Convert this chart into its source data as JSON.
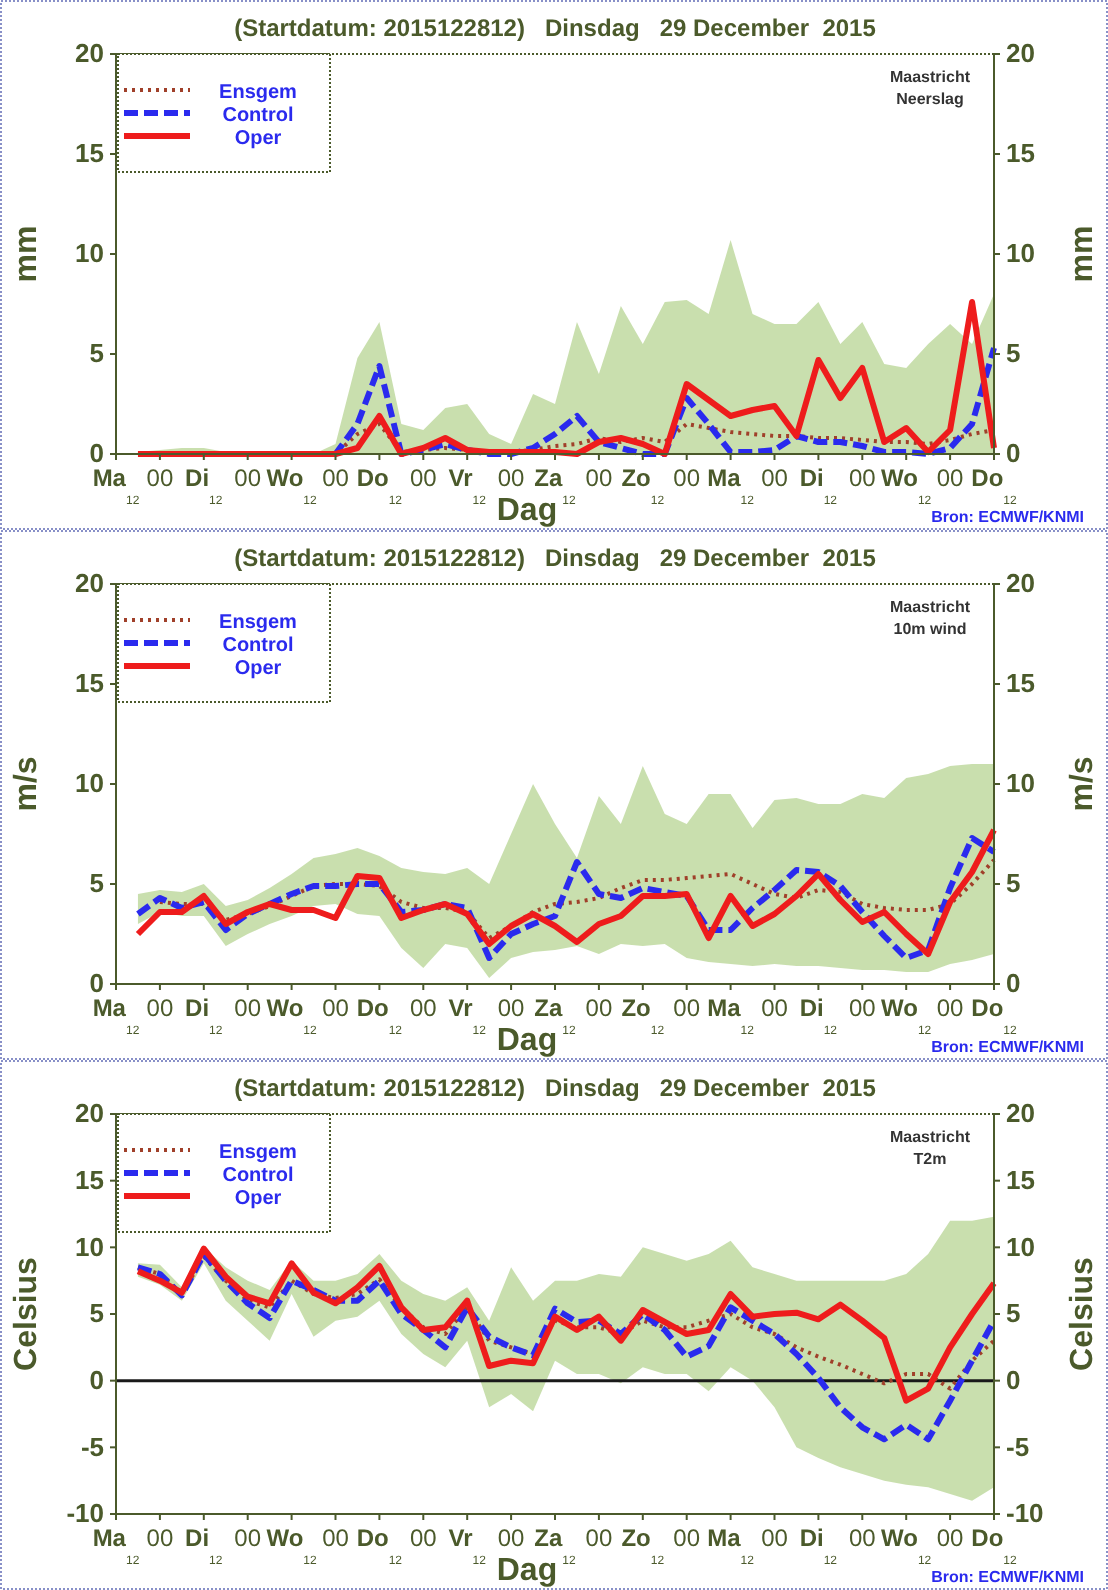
{
  "chart_data": [
    {
      "type": "line",
      "title": "(Startdatum: 2015122812)   Dinsdag   29 December  2015",
      "xlabel": "Dag",
      "ylabel": "mm",
      "y2label": "mm",
      "legend": "top left",
      "annotations": [
        "Maastricht",
        "Neerslag",
        "Bron: ECMWF/KNMI"
      ],
      "x": [
        "2015-12-28T18:00",
        "2015-12-29T00:00",
        "2015-12-29T06:00",
        "2015-12-29T12:00",
        "2015-12-29T18:00",
        "2015-12-30T00:00",
        "2015-12-30T06:00",
        "2015-12-30T12:00",
        "2015-12-30T18:00",
        "2015-12-31T00:00",
        "2015-12-31T06:00",
        "2015-12-31T12:00",
        "2015-12-31T18:00",
        "2016-01-01T00:00",
        "2016-01-01T06:00",
        "2016-01-01T12:00",
        "2016-01-01T18:00",
        "2016-01-02T00:00",
        "2016-01-02T06:00",
        "2016-01-02T12:00",
        "2016-01-02T18:00",
        "2016-01-03T00:00",
        "2016-01-03T06:00",
        "2016-01-03T12:00",
        "2016-01-03T18:00",
        "2016-01-04T00:00",
        "2016-01-04T06:00",
        "2016-01-04T12:00",
        "2016-01-04T18:00",
        "2016-01-05T00:00",
        "2016-01-05T06:00",
        "2016-01-05T12:00",
        "2016-01-05T18:00",
        "2016-01-06T00:00",
        "2016-01-06T06:00",
        "2016-01-06T12:00",
        "2016-01-06T18:00",
        "2016-01-07T00:00",
        "2016-01-07T06:00",
        "2016-01-07T12:00"
      ],
      "xlim": [
        "2015-12-28T12:00",
        "2016-01-07T12:00"
      ],
      "xticks": [
        {
          "value": "2015-12-28T12:00",
          "label": "Ma$_{12}$"
        },
        {
          "value": "2015-12-29T00:00",
          "label": "00"
        },
        {
          "value": "2015-12-29T12:00",
          "label": "Di$_{12}$"
        },
        {
          "value": "2015-12-30T00:00",
          "label": "00"
        },
        {
          "value": "2015-12-30T12:00",
          "label": "Wo$_{12}$"
        },
        {
          "value": "2015-12-31T00:00",
          "label": "00"
        },
        {
          "value": "2015-12-31T12:00",
          "label": "Do$_{12}$"
        },
        {
          "value": "2016-01-01T00:00",
          "label": "00"
        },
        {
          "value": "2016-01-01T12:00",
          "label": "Vr$_{12}$"
        },
        {
          "value": "2016-01-02T00:00",
          "label": "00"
        },
        {
          "value": "2016-01-02T12:00",
          "label": "Za$_{12}$"
        },
        {
          "value": "2016-01-03T00:00",
          "label": "00"
        },
        {
          "value": "2016-01-03T12:00",
          "label": "Zo$_{12}$"
        },
        {
          "value": "2016-01-04T00:00",
          "label": "00"
        },
        {
          "value": "2016-01-04T12:00",
          "label": "Ma$_{12}$"
        },
        {
          "value": "2016-01-05T00:00",
          "label": "00"
        },
        {
          "value": "2016-01-05T12:00",
          "label": "Di$_{12}$"
        },
        {
          "value": "2016-01-06T00:00",
          "label": "00"
        },
        {
          "value": "2016-01-06T12:00",
          "label": "Wo$_{12}$"
        },
        {
          "value": "2016-01-07T00:00",
          "label": "00"
        },
        {
          "value": "2016-01-07T12:00",
          "label": "Do$_{12}$"
        }
      ],
      "ylim": [
        0,
        20
      ],
      "yticks": [
        0,
        5,
        10,
        15,
        20
      ],
      "y2lim": [
        0,
        20
      ],
      "y2ticks": [
        0,
        5,
        10,
        15,
        20
      ],
      "series": [
        {
          "name": "Ensgem",
          "color": "#a0402a",
          "line_style": "dotted",
          "values": [
            null,
            null,
            null,
            0,
            0,
            0,
            0,
            0,
            0,
            0,
            1.0,
            1.5,
            0.1,
            0.2,
            0.3,
            0.2,
            0.1,
            0.1,
            0.2,
            0.4,
            0.5,
            0.8,
            0.6,
            0.8,
            0.6,
            1.5,
            1.3,
            1.1,
            1.0,
            0.9,
            0.9,
            0.8,
            0.8,
            0.7,
            0.6,
            0.6,
            0.5,
            0.7,
            1.0,
            1.2
          ],
          "lower": [
            0,
            0,
            0,
            0,
            0,
            0,
            0,
            0,
            0,
            0,
            0,
            0,
            0,
            0,
            0,
            0,
            0,
            0,
            0,
            0,
            0,
            0,
            0,
            0,
            0,
            0,
            0,
            0,
            0,
            0,
            0,
            0,
            0,
            0,
            0,
            0,
            0,
            0,
            0,
            0
          ],
          "upper": [
            0.1,
            0.2,
            0.3,
            0.3,
            0.1,
            0,
            0,
            0,
            0,
            0.5,
            4.8,
            6.6,
            1.5,
            1.2,
            2.3,
            2.5,
            1.0,
            0.5,
            3.0,
            2.5,
            6.6,
            4.0,
            7.4,
            5.5,
            7.6,
            7.7,
            7.0,
            10.7,
            7.0,
            6.5,
            6.5,
            7.6,
            5.5,
            6.6,
            4.5,
            4.3,
            5.5,
            6.5,
            5.5,
            8.0
          ]
        },
        {
          "name": "Control",
          "color": "#2a2aee",
          "line_style": "dashed",
          "values": [
            null,
            null,
            null,
            null,
            null,
            null,
            null,
            null,
            0,
            0,
            1.5,
            4.4,
            0,
            0.2,
            0.5,
            0.2,
            0,
            0,
            0.3,
            1.0,
            1.9,
            0.6,
            0.3,
            0,
            0,
            2.8,
            1.5,
            0.1,
            0.1,
            0.2,
            0.9,
            0.6,
            0.6,
            0.4,
            0.1,
            0.1,
            0,
            0.3,
            1.5,
            5.3
          ]
        },
        {
          "name": "Oper",
          "color": "#ee1c1c",
          "line_style": "solid",
          "values": [
            0,
            0,
            0,
            0,
            0,
            0,
            0,
            0,
            0,
            0,
            0.3,
            1.9,
            0,
            0.3,
            0.8,
            0.2,
            0.1,
            0.1,
            0.1,
            0.1,
            0,
            0.6,
            0.8,
            0.5,
            0,
            3.5,
            2.7,
            1.9,
            2.2,
            2.4,
            0.9,
            4.7,
            2.8,
            4.3,
            0.6,
            1.3,
            0.1,
            1.2,
            7.6,
            0.3
          ]
        }
      ]
    },
    {
      "type": "line",
      "title": "(Startdatum: 2015122812)   Dinsdag   29 December  2015",
      "xlabel": "Dag",
      "ylabel": "m/s",
      "y2label": "m/s",
      "legend": "top left",
      "annotations": [
        "Maastricht",
        "10m wind",
        "Bron: ECMWF/KNMI"
      ],
      "x": [
        "2015-12-28T18:00",
        "2015-12-29T00:00",
        "2015-12-29T06:00",
        "2015-12-29T12:00",
        "2015-12-29T18:00",
        "2015-12-30T00:00",
        "2015-12-30T06:00",
        "2015-12-30T12:00",
        "2015-12-30T18:00",
        "2015-12-31T00:00",
        "2015-12-31T06:00",
        "2015-12-31T12:00",
        "2015-12-31T18:00",
        "2016-01-01T00:00",
        "2016-01-01T06:00",
        "2016-01-01T12:00",
        "2016-01-01T18:00",
        "2016-01-02T00:00",
        "2016-01-02T06:00",
        "2016-01-02T12:00",
        "2016-01-02T18:00",
        "2016-01-03T00:00",
        "2016-01-03T06:00",
        "2016-01-03T12:00",
        "2016-01-03T18:00",
        "2016-01-04T00:00",
        "2016-01-04T06:00",
        "2016-01-04T12:00",
        "2016-01-04T18:00",
        "2016-01-05T00:00",
        "2016-01-05T06:00",
        "2016-01-05T12:00",
        "2016-01-05T18:00",
        "2016-01-06T00:00",
        "2016-01-06T06:00",
        "2016-01-06T12:00",
        "2016-01-06T18:00",
        "2016-01-07T00:00",
        "2016-01-07T06:00",
        "2016-01-07T12:00"
      ],
      "xlim": [
        "2015-12-28T12:00",
        "2016-01-07T12:00"
      ],
      "xticks": [
        {
          "value": "2015-12-28T12:00",
          "label": "Ma$_{12}$"
        },
        {
          "value": "2015-12-29T00:00",
          "label": "00"
        },
        {
          "value": "2015-12-29T12:00",
          "label": "Di$_{12}$"
        },
        {
          "value": "2015-12-30T00:00",
          "label": "00"
        },
        {
          "value": "2015-12-30T12:00",
          "label": "Wo$_{12}$"
        },
        {
          "value": "2015-12-31T00:00",
          "label": "00"
        },
        {
          "value": "2015-12-31T12:00",
          "label": "Do$_{12}$"
        },
        {
          "value": "2016-01-01T00:00",
          "label": "00"
        },
        {
          "value": "2016-01-01T12:00",
          "label": "Vr$_{12}$"
        },
        {
          "value": "2016-01-02T00:00",
          "label": "00"
        },
        {
          "value": "2016-01-02T12:00",
          "label": "Za$_{12}$"
        },
        {
          "value": "2016-01-03T00:00",
          "label": "00"
        },
        {
          "value": "2016-01-03T12:00",
          "label": "Zo$_{12}$"
        },
        {
          "value": "2016-01-04T00:00",
          "label": "00"
        },
        {
          "value": "2016-01-04T12:00",
          "label": "Ma$_{12}$"
        },
        {
          "value": "2016-01-05T00:00",
          "label": "00"
        },
        {
          "value": "2016-01-05T12:00",
          "label": "Di$_{12}$"
        },
        {
          "value": "2016-01-06T00:00",
          "label": "00"
        },
        {
          "value": "2016-01-06T12:00",
          "label": "Wo$_{12}$"
        },
        {
          "value": "2016-01-07T00:00",
          "label": "00"
        },
        {
          "value": "2016-01-07T12:00",
          "label": "Do$_{12}$"
        }
      ],
      "ylim": [
        0,
        20
      ],
      "yticks": [
        0,
        5,
        10,
        15,
        20
      ],
      "y2lim": [
        0,
        20
      ],
      "y2ticks": [
        0,
        5,
        10,
        15,
        20
      ],
      "series": [
        {
          "name": "Ensgem",
          "color": "#a0402a",
          "line_style": "dotted",
          "values": [
            null,
            4.1,
            4.0,
            4.0,
            3.2,
            3.5,
            3.9,
            4.4,
            4.9,
            5.0,
            5.0,
            4.9,
            4.1,
            3.8,
            3.8,
            3.6,
            2.3,
            2.9,
            3.6,
            4.0,
            4.1,
            4.3,
            4.8,
            5.2,
            5.2,
            5.3,
            5.4,
            5.5,
            5.0,
            4.5,
            4.3,
            4.7,
            4.6,
            4.0,
            3.8,
            3.7,
            3.7,
            4.0,
            5.0,
            6.2
          ],
          "lower": [
            3.0,
            3.6,
            3.4,
            3.4,
            1.9,
            2.5,
            3.0,
            3.4,
            3.9,
            4.0,
            3.5,
            3.4,
            1.8,
            0.8,
            2.0,
            1.8,
            0.3,
            1.3,
            1.6,
            1.7,
            1.9,
            1.5,
            2.0,
            1.9,
            2.0,
            1.3,
            1.1,
            1.0,
            0.9,
            1.0,
            0.9,
            0.9,
            0.8,
            0.7,
            0.7,
            0.6,
            0.6,
            1.0,
            1.2,
            1.5
          ],
          "upper": [
            4.5,
            4.7,
            4.6,
            5.0,
            3.9,
            4.2,
            4.8,
            5.5,
            6.3,
            6.5,
            6.8,
            6.4,
            5.8,
            5.6,
            5.5,
            5.8,
            5.0,
            7.5,
            10.0,
            8.0,
            6.3,
            9.4,
            8.0,
            10.9,
            8.5,
            8.0,
            9.5,
            9.5,
            7.8,
            9.2,
            9.3,
            9.0,
            9.0,
            9.5,
            9.3,
            10.3,
            10.5,
            10.9,
            11.0,
            11.0
          ]
        },
        {
          "name": "Control",
          "color": "#2a2aee",
          "line_style": "dashed",
          "values": [
            3.5,
            4.3,
            3.8,
            4.1,
            2.7,
            3.5,
            4.0,
            4.5,
            4.9,
            4.9,
            5.0,
            5.0,
            3.6,
            3.7,
            4.0,
            3.8,
            1.3,
            2.5,
            3.0,
            3.4,
            6.1,
            4.5,
            4.3,
            4.8,
            4.6,
            4.4,
            2.7,
            2.7,
            3.8,
            4.7,
            5.7,
            5.6,
            4.9,
            3.6,
            2.4,
            1.3,
            1.7,
            4.8,
            7.3,
            6.6
          ]
        },
        {
          "name": "Oper",
          "color": "#ee1c1c",
          "line_style": "solid",
          "values": [
            2.5,
            3.6,
            3.6,
            4.4,
            3.0,
            3.6,
            4.0,
            3.7,
            3.7,
            3.3,
            5.4,
            5.3,
            3.3,
            3.7,
            4.0,
            3.5,
            2.0,
            2.9,
            3.5,
            2.9,
            2.1,
            3.0,
            3.4,
            4.4,
            4.4,
            4.5,
            2.3,
            4.4,
            2.9,
            3.5,
            4.4,
            5.5,
            4.2,
            3.1,
            3.6,
            2.5,
            1.5,
            4.1,
            5.6,
            7.7
          ]
        }
      ]
    },
    {
      "type": "line",
      "title": "(Startdatum: 2015122812)   Dinsdag   29 December  2015",
      "xlabel": "Dag",
      "ylabel": "Celsius",
      "y2label": "Celsius",
      "legend": "top left",
      "annotations": [
        "Maastricht",
        "T2m",
        "Bron: ECMWF/KNMI"
      ],
      "x": [
        "2015-12-28T18:00",
        "2015-12-29T00:00",
        "2015-12-29T06:00",
        "2015-12-29T12:00",
        "2015-12-29T18:00",
        "2015-12-30T00:00",
        "2015-12-30T06:00",
        "2015-12-30T12:00",
        "2015-12-30T18:00",
        "2015-12-31T00:00",
        "2015-12-31T06:00",
        "2015-12-31T12:00",
        "2015-12-31T18:00",
        "2016-01-01T00:00",
        "2016-01-01T06:00",
        "2016-01-01T12:00",
        "2016-01-01T18:00",
        "2016-01-02T00:00",
        "2016-01-02T06:00",
        "2016-01-02T12:00",
        "2016-01-02T18:00",
        "2016-01-03T00:00",
        "2016-01-03T06:00",
        "2016-01-03T12:00",
        "2016-01-03T18:00",
        "2016-01-04T00:00",
        "2016-01-04T06:00",
        "2016-01-04T12:00",
        "2016-01-04T18:00",
        "2016-01-05T00:00",
        "2016-01-05T06:00",
        "2016-01-05T12:00",
        "2016-01-05T18:00",
        "2016-01-06T00:00",
        "2016-01-06T06:00",
        "2016-01-06T12:00",
        "2016-01-06T18:00",
        "2016-01-07T00:00",
        "2016-01-07T06:00",
        "2016-01-07T12:00"
      ],
      "xlim": [
        "2015-12-28T12:00",
        "2016-01-07T12:00"
      ],
      "xticks": [
        {
          "value": "2015-12-28T12:00",
          "label": "Ma$_{12}$"
        },
        {
          "value": "2015-12-29T00:00",
          "label": "00"
        },
        {
          "value": "2015-12-29T12:00",
          "label": "Di$_{12}$"
        },
        {
          "value": "2015-12-30T00:00",
          "label": "00"
        },
        {
          "value": "2015-12-30T12:00",
          "label": "Wo$_{12}$"
        },
        {
          "value": "2015-12-31T00:00",
          "label": "00"
        },
        {
          "value": "2015-12-31T12:00",
          "label": "Do$_{12}$"
        },
        {
          "value": "2016-01-01T00:00",
          "label": "00"
        },
        {
          "value": "2016-01-01T12:00",
          "label": "Vr$_{12}$"
        },
        {
          "value": "2016-01-02T00:00",
          "label": "00"
        },
        {
          "value": "2016-01-02T12:00",
          "label": "Za$_{12}$"
        },
        {
          "value": "2016-01-03T00:00",
          "label": "00"
        },
        {
          "value": "2016-01-03T12:00",
          "label": "Zo$_{12}$"
        },
        {
          "value": "2016-01-04T00:00",
          "label": "00"
        },
        {
          "value": "2016-01-04T12:00",
          "label": "Ma$_{12}$"
        },
        {
          "value": "2016-01-05T00:00",
          "label": "00"
        },
        {
          "value": "2016-01-05T12:00",
          "label": "Di$_{12}$"
        },
        {
          "value": "2016-01-06T00:00",
          "label": "00"
        },
        {
          "value": "2016-01-06T12:00",
          "label": "Wo$_{12}$"
        },
        {
          "value": "2016-01-07T00:00",
          "label": "00"
        },
        {
          "value": "2016-01-07T12:00",
          "label": "Do$_{12}$"
        }
      ],
      "ylim": [
        -10,
        20
      ],
      "yticks": [
        -10,
        -5,
        0,
        5,
        10,
        15,
        20
      ],
      "y2lim": [
        -10,
        20
      ],
      "y2ticks": [
        -10,
        -5,
        0,
        5,
        10,
        15,
        20
      ],
      "ref_lines": [
        {
          "axis": "y",
          "value": 0,
          "color": "#1a1a1a"
        }
      ],
      "series": [
        {
          "name": "Ensgem",
          "color": "#a0402a",
          "line_style": "dotted",
          "values": [
            8.5,
            8.0,
            6.5,
            9.3,
            7.5,
            6.0,
            5.5,
            7.5,
            6.5,
            6.2,
            6.5,
            7.6,
            5.5,
            4.0,
            3.5,
            5.5,
            3.0,
            2.5,
            2.0,
            4.5,
            4.0,
            4.0,
            3.5,
            4.5,
            4.0,
            4.0,
            4.5,
            5.0,
            4.0,
            3.5,
            2.5,
            1.8,
            1.2,
            0.5,
            -0.2,
            0.5,
            0.5,
            -0.6,
            1.5,
            3.0
          ],
          "lower": [
            7.8,
            7.2,
            6.0,
            8.8,
            6.0,
            4.5,
            3.0,
            6.5,
            3.3,
            4.5,
            4.8,
            6.0,
            3.5,
            2.0,
            1.0,
            3.0,
            -2.0,
            -1.0,
            -2.3,
            1.5,
            0.5,
            0.5,
            -0.2,
            1.0,
            0.5,
            0.5,
            -0.8,
            1.0,
            0.0,
            -2.0,
            -5.0,
            -5.8,
            -6.5,
            -7.0,
            -7.5,
            -7.8,
            -8.0,
            -8.5,
            -9.0,
            -8.0
          ],
          "upper": [
            8.8,
            8.7,
            7.0,
            10.0,
            8.5,
            7.5,
            6.8,
            9.0,
            7.5,
            7.5,
            8.0,
            9.5,
            7.5,
            6.5,
            6.0,
            7.0,
            4.5,
            8.5,
            6.0,
            7.5,
            7.5,
            8.0,
            7.8,
            10.0,
            9.5,
            9.0,
            9.5,
            10.5,
            8.5,
            8.0,
            7.5,
            7.5,
            7.5,
            7.5,
            7.5,
            8.0,
            9.5,
            12.0,
            12.0,
            12.3
          ]
        },
        {
          "name": "Control",
          "color": "#2a2aee",
          "line_style": "dashed",
          "values": [
            8.5,
            8.0,
            6.4,
            9.5,
            7.5,
            5.8,
            4.7,
            7.5,
            6.8,
            6.0,
            6.0,
            7.5,
            5.0,
            3.8,
            2.5,
            5.5,
            3.3,
            2.5,
            1.9,
            5.4,
            4.4,
            4.5,
            3.5,
            5.0,
            3.8,
            1.8,
            2.6,
            5.5,
            4.5,
            3.5,
            2.0,
            0.2,
            -2.0,
            -3.5,
            -4.4,
            -3.3,
            -4.4,
            -1.5,
            1.5,
            4.5
          ]
        },
        {
          "name": "Oper",
          "color": "#ee1c1c",
          "line_style": "solid",
          "values": [
            8.2,
            7.5,
            6.6,
            9.9,
            7.8,
            6.3,
            5.8,
            8.8,
            6.6,
            5.8,
            7.0,
            8.6,
            5.5,
            3.8,
            4.0,
            6.0,
            1.1,
            1.5,
            1.3,
            4.8,
            3.8,
            4.8,
            3.0,
            5.3,
            4.4,
            3.5,
            3.8,
            6.5,
            4.8,
            5.0,
            5.1,
            4.6,
            5.7,
            4.5,
            3.2,
            -1.5,
            -0.6,
            2.5,
            5.0,
            7.3
          ]
        }
      ]
    }
  ]
}
